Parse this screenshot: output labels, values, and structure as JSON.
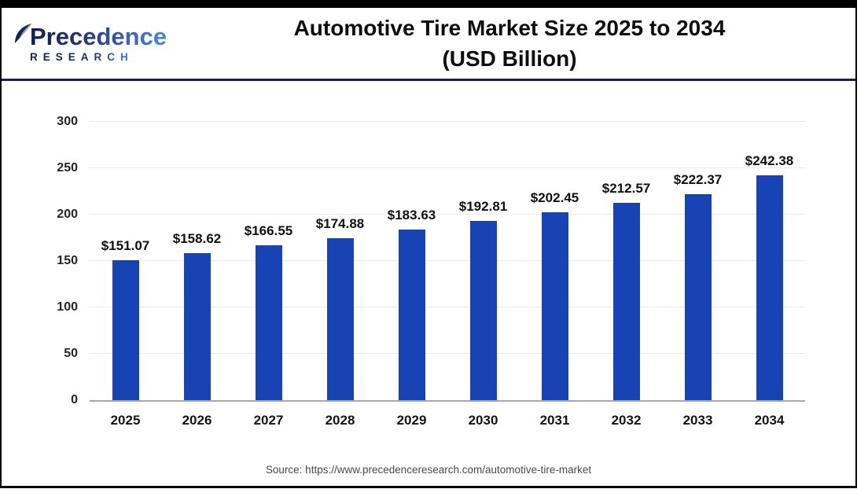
{
  "colors": {
    "bar_blue": "#1843b5",
    "header_rule_navy": "#1a1f5a",
    "outer_border": "#000000",
    "gridline": "#ebebeb",
    "baseline": "#a9a9a9"
  },
  "header": {
    "logo": {
      "brand": "Precedence",
      "sub": "RESEARCH",
      "leaf_icon": "leaf-icon"
    },
    "title_line1": "Automotive Tire Market Size 2025 to 2034",
    "title_line2": "(USD Billion)"
  },
  "chart_data": {
    "type": "bar",
    "title": "Automotive Tire Market Size 2025 to 2034 (USD Billion)",
    "categories": [
      "2025",
      "2026",
      "2027",
      "2028",
      "2029",
      "2030",
      "2031",
      "2032",
      "2033",
      "2034"
    ],
    "values": [
      151.07,
      158.62,
      166.55,
      174.88,
      183.63,
      192.81,
      202.45,
      212.57,
      222.37,
      242.38
    ],
    "value_labels": [
      "$151.07",
      "$158.62",
      "$166.55",
      "$174.88",
      "$183.63",
      "$192.81",
      "$202.45",
      "$212.57",
      "$222.37",
      "$242.38"
    ],
    "xlabel": "",
    "ylabel": "",
    "ylim": [
      0,
      300
    ],
    "yticks": [
      0,
      50,
      100,
      150,
      200,
      250,
      300
    ],
    "grid": "horizontal",
    "legend": "none",
    "bar_color": "#1843b5"
  },
  "footer": {
    "source": "Source: https://www.precedenceresearch.com/automotive-tire-market"
  }
}
